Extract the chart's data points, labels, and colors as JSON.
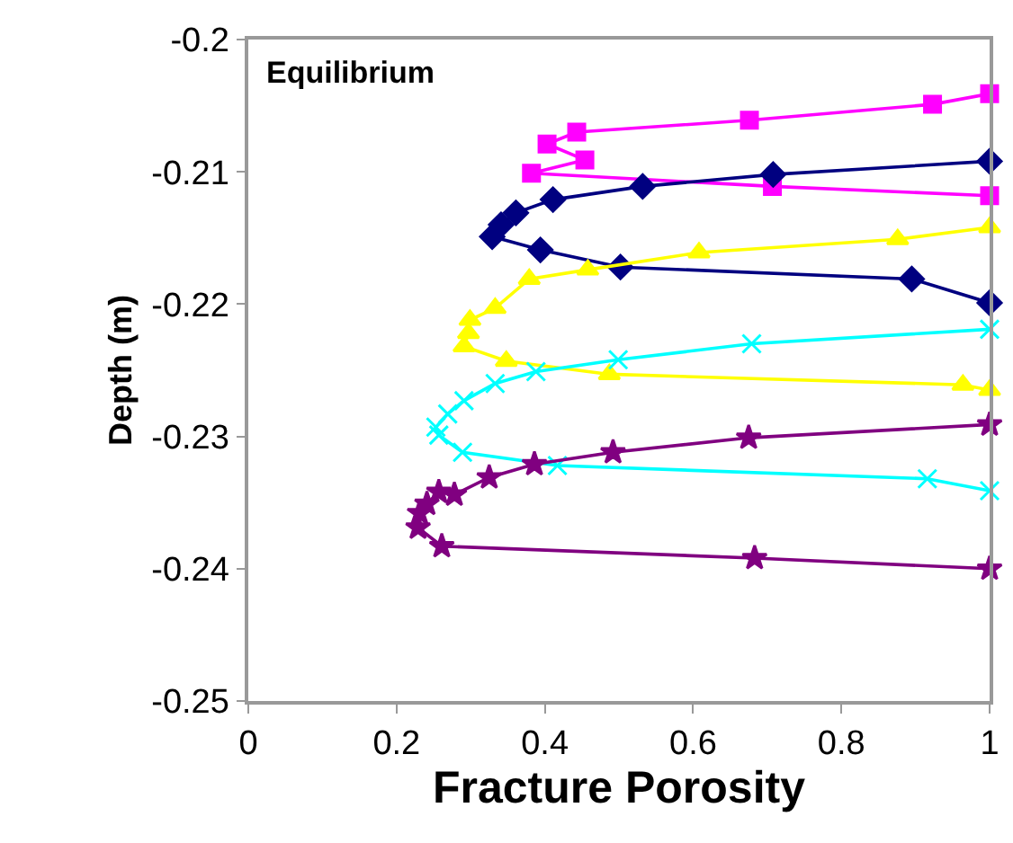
{
  "chart_data": {
    "type": "line",
    "xlabel": "Fracture Porosity",
    "ylabel": "Depth (m)",
    "annotations": [
      "Equilibrium"
    ],
    "xlim": [
      0,
      1
    ],
    "xticks": [
      0,
      0.2,
      0.4,
      0.6,
      0.8,
      1
    ],
    "ylim": [
      -0.25,
      -0.2
    ],
    "yticks": [
      -0.25,
      -0.24,
      -0.23,
      -0.22,
      -0.21,
      -0.2
    ],
    "line_style": "solid",
    "series": [
      {
        "color": "#ff00ff",
        "marker": "square",
        "x": [
          1,
          0.923,
          0.676,
          0.443,
          0.403,
          0.454,
          0.382,
          0.707,
          1
        ],
        "values": [
          -0.2041,
          -0.2049,
          -0.2061,
          -0.207,
          -0.2079,
          -0.2091,
          -0.2101,
          -0.2111,
          -0.2118
        ]
      },
      {
        "color": "#000080",
        "marker": "diamond",
        "x": [
          1,
          0.708,
          0.532,
          0.411,
          0.361,
          0.341,
          0.329,
          0.394,
          0.502,
          0.895,
          1
        ],
        "values": [
          -0.2092,
          -0.2102,
          -0.2111,
          -0.2121,
          -0.2131,
          -0.214,
          -0.2149,
          -0.2159,
          -0.2172,
          -0.2181,
          -0.2199
        ]
      },
      {
        "color": "#ffff00",
        "marker": "triangle",
        "x": [
          1,
          0.876,
          0.608,
          0.458,
          0.379,
          0.333,
          0.299,
          0.297,
          0.291,
          0.348,
          0.487,
          0.964,
          1
        ],
        "values": [
          -0.2142,
          -0.2151,
          -0.2161,
          -0.2174,
          -0.2181,
          -0.2203,
          -0.2212,
          -0.2222,
          -0.2232,
          -0.2243,
          -0.2253,
          -0.2261,
          -0.2265
        ]
      },
      {
        "color": "#00ffff",
        "marker": "cross",
        "x": [
          1,
          0.679,
          0.499,
          0.388,
          0.333,
          0.291,
          0.269,
          0.253,
          0.257,
          0.289,
          0.417,
          0.916,
          1
        ],
        "values": [
          -0.2219,
          -0.223,
          -0.2242,
          -0.2251,
          -0.226,
          -0.2273,
          -0.2283,
          -0.2293,
          -0.2299,
          -0.2312,
          -0.2322,
          -0.2332,
          -0.2341
        ]
      },
      {
        "color": "#800080",
        "marker": "star",
        "x": [
          1,
          0.675,
          0.492,
          0.386,
          0.325,
          0.278,
          0.257,
          0.241,
          0.231,
          0.229,
          0.261,
          0.683,
          1
        ],
        "values": [
          -0.2291,
          -0.2301,
          -0.2312,
          -0.2321,
          -0.2331,
          -0.2344,
          -0.2342,
          -0.2351,
          -0.2358,
          -0.2369,
          -0.2383,
          -0.2392,
          -0.24
        ]
      }
    ]
  }
}
